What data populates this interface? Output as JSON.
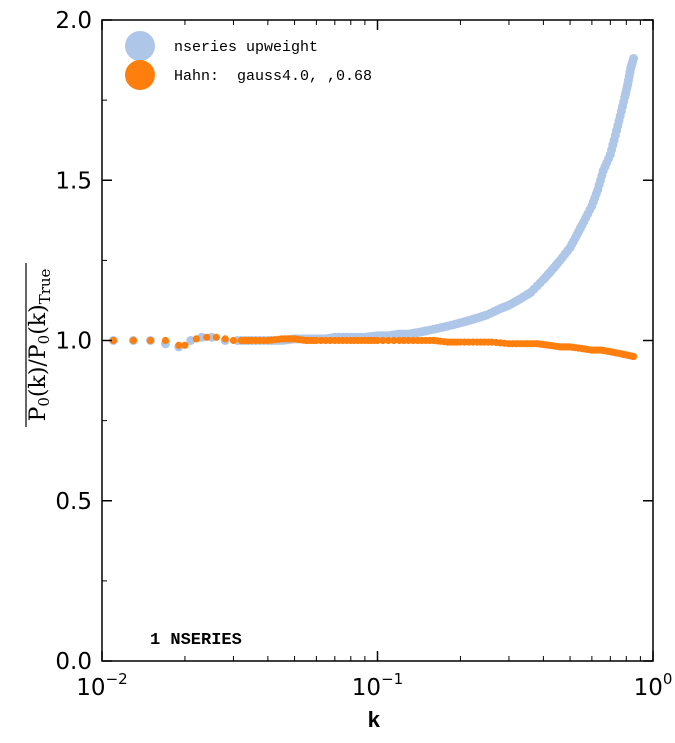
{
  "chart_data": {
    "type": "scatter",
    "xscale": "log",
    "xlim": [
      0.01,
      1.0
    ],
    "ylim": [
      0.0,
      2.0
    ],
    "xlabel": "k",
    "ylabel": "P₀(k) / P₀(k)True",
    "annotation": "1 NSERIES",
    "x_ticks": [
      {
        "value": 0.01,
        "base": "10",
        "exp": "−2"
      },
      {
        "value": 0.1,
        "base": "10",
        "exp": "−1"
      },
      {
        "value": 1.0,
        "base": "10",
        "exp": "0"
      }
    ],
    "y_ticks": [
      {
        "value": 0.0,
        "label": "0.0"
      },
      {
        "value": 0.5,
        "label": "0.5"
      },
      {
        "value": 1.0,
        "label": "1.0"
      },
      {
        "value": 1.5,
        "label": "1.5"
      },
      {
        "value": 2.0,
        "label": "2.0"
      }
    ],
    "legend": {
      "placement": "upper-left"
    },
    "series": [
      {
        "name": "nseries upweight",
        "color": "#aec7e8",
        "x": [
          0.011,
          0.013,
          0.015,
          0.017,
          0.019,
          0.021,
          0.023,
          0.025,
          0.028,
          0.031,
          0.035,
          0.04,
          0.045,
          0.05,
          0.055,
          0.06,
          0.065,
          0.07,
          0.08,
          0.09,
          0.1,
          0.11,
          0.12,
          0.13,
          0.14,
          0.15,
          0.17,
          0.19,
          0.21,
          0.23,
          0.25,
          0.28,
          0.3,
          0.33,
          0.36,
          0.4,
          0.43,
          0.46,
          0.5,
          0.53,
          0.56,
          0.6,
          0.63,
          0.66,
          0.7,
          0.73,
          0.76,
          0.79,
          0.81,
          0.83,
          0.85
        ],
        "y": [
          1.0,
          1.0,
          1.0,
          0.99,
          0.98,
          1.0,
          1.01,
          1.01,
          1.0,
          1.0,
          1.0,
          1.0,
          1.0,
          1.005,
          1.005,
          1.005,
          1.005,
          1.01,
          1.01,
          1.01,
          1.015,
          1.015,
          1.02,
          1.02,
          1.025,
          1.03,
          1.04,
          1.05,
          1.06,
          1.07,
          1.08,
          1.1,
          1.11,
          1.13,
          1.15,
          1.19,
          1.22,
          1.25,
          1.29,
          1.33,
          1.37,
          1.42,
          1.47,
          1.53,
          1.58,
          1.64,
          1.7,
          1.76,
          1.8,
          1.85,
          1.88
        ]
      },
      {
        "name": "Hahn:  gauss4.0, ,0.68",
        "color": "#ff7f0e",
        "x": [
          0.011,
          0.013,
          0.015,
          0.017,
          0.019,
          0.02,
          0.022,
          0.024,
          0.026,
          0.028,
          0.03,
          0.032,
          0.035,
          0.04,
          0.045,
          0.05,
          0.055,
          0.06,
          0.07,
          0.08,
          0.09,
          0.1,
          0.12,
          0.14,
          0.16,
          0.18,
          0.2,
          0.23,
          0.26,
          0.3,
          0.34,
          0.38,
          0.42,
          0.46,
          0.5,
          0.55,
          0.6,
          0.65,
          0.7,
          0.75,
          0.8,
          0.85
        ],
        "y": [
          1.0,
          1.0,
          1.0,
          1.0,
          0.985,
          0.985,
          1.005,
          1.01,
          1.01,
          1.005,
          1.0,
          1.0,
          1.0,
          1.0,
          1.005,
          1.005,
          1.0,
          1.0,
          1.0,
          1.0,
          1.0,
          1.0,
          1.0,
          1.0,
          1.0,
          0.995,
          0.995,
          0.995,
          0.995,
          0.99,
          0.99,
          0.99,
          0.985,
          0.98,
          0.98,
          0.975,
          0.97,
          0.97,
          0.965,
          0.96,
          0.955,
          0.95
        ]
      }
    ]
  }
}
